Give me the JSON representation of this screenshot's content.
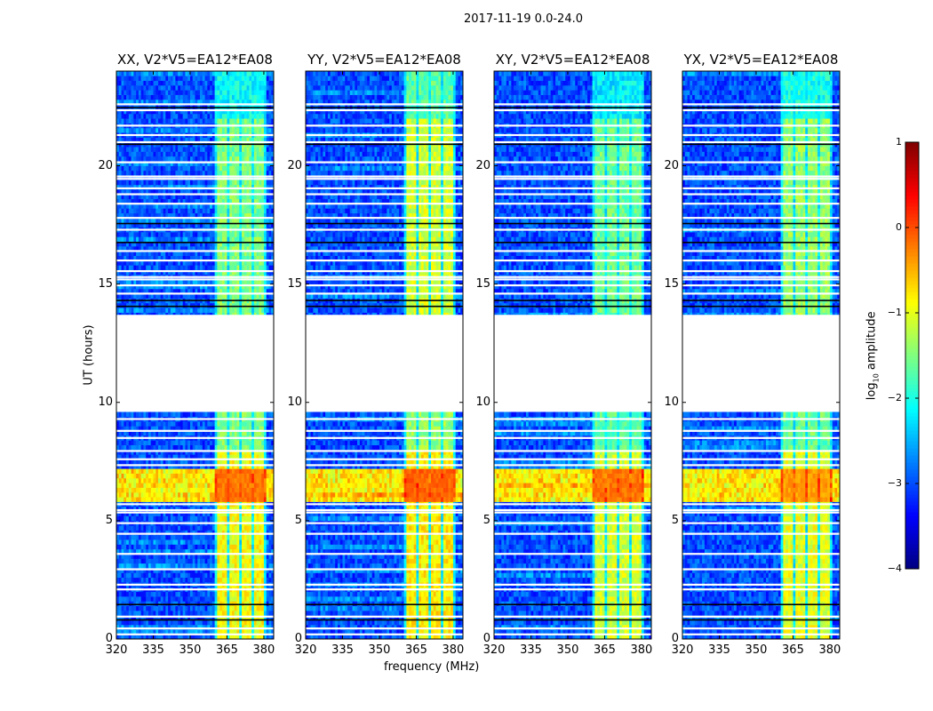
{
  "chart_data": {
    "type": "heatmap",
    "title": "2017-11-19 0.0-24.0",
    "xlabel": "frequency (MHz)",
    "ylabel": "UT (hours)",
    "xlim": [
      320,
      384
    ],
    "ylim": [
      0,
      24
    ],
    "xticks": [
      320,
      335,
      350,
      365,
      380
    ],
    "yticks": [
      0,
      5,
      10,
      15,
      20
    ],
    "colorbar": {
      "label": "log10 amplitude",
      "label_main": "log",
      "label_sub": "10",
      "label_rest": " amplitude",
      "colormap": "jet",
      "range": [
        -4,
        1
      ],
      "ticks": [
        -4,
        -3,
        -2,
        -1,
        0,
        1
      ],
      "tick_labels": [
        "−4",
        "−3",
        "−2",
        "−1",
        "0",
        "1"
      ]
    },
    "data_gap_hours": [
      9.6,
      13.7
    ],
    "background_level": -3.0,
    "rfi_channels_mhz": [
      [
        361,
        365
      ],
      [
        366,
        370
      ],
      [
        371,
        375
      ],
      [
        376,
        380
      ]
    ],
    "strong_interval_hours": [
      5.8,
      7.2
    ],
    "flagged_rows_white_hours": [
      0.2,
      0.45,
      0.95,
      2.1,
      2.3,
      2.95,
      3.6,
      4.45,
      4.9,
      5.35,
      5.45,
      5.7,
      7.35,
      7.6,
      7.95,
      8.5,
      8.8,
      9.3,
      14.6,
      14.95,
      15.2,
      15.3,
      15.55,
      16.0,
      16.4,
      17.3,
      17.8,
      18.4,
      18.8,
      19.05,
      19.45,
      19.55,
      20.15,
      21.0,
      21.3,
      21.7,
      22.35,
      22.6
    ],
    "flagged_rows_black_hours": [
      0.8,
      1.45,
      14.05,
      14.3,
      16.75,
      17.55,
      20.9,
      22.45
    ],
    "panels": [
      {
        "title": "XX, V2*V5=EA12*EA08",
        "rfi_level_day": -1.5,
        "rfi_level_night": -0.9,
        "strong_level": -0.2
      },
      {
        "title": "YY, V2*V5=EA12*EA08",
        "rfi_level_day": -1.1,
        "rfi_level_night": -0.8,
        "strong_level": -0.1
      },
      {
        "title": "XY, V2*V5=EA12*EA08",
        "rfi_level_day": -1.6,
        "rfi_level_night": -1.1,
        "strong_level": -0.2
      },
      {
        "title": "YX, V2*V5=EA12*EA08",
        "rfi_level_day": -1.4,
        "rfi_level_night": -1.0,
        "strong_level": -0.4
      }
    ]
  }
}
